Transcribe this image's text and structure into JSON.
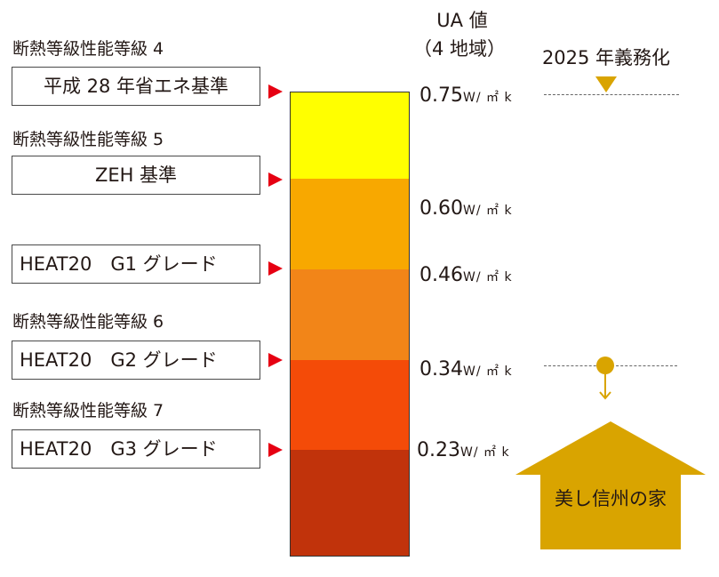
{
  "header": {
    "ua_title": "UA 値",
    "ua_region": "（4 地域）",
    "mandate": "2025 年義務化"
  },
  "grades": [
    {
      "label": "断熱等級性能等級 4",
      "standard": "平成 28 年省エネ基準",
      "value": "0.75",
      "unit": "W/ ㎡ k"
    },
    {
      "label": "断熱等級性能等級 5",
      "standard": "ZEH 基準",
      "value": "0.60",
      "unit": "W/ ㎡ k"
    },
    {
      "label": "",
      "standard": "HEAT20　G1 グレード",
      "value": "0.46",
      "unit": "W/ ㎡ k"
    },
    {
      "label": "断熱等級性能等級 6",
      "standard": "HEAT20　G2 グレード",
      "value": "0.34",
      "unit": "W/ ㎡ k"
    },
    {
      "label": "断熱等級性能等級 7",
      "standard": "HEAT20　G3 グレード",
      "value": "0.23",
      "unit": "W/ ㎡ k"
    }
  ],
  "house": {
    "label": "美し信州の家"
  },
  "colors": {
    "bar": [
      "#ffff00",
      "#f8a800",
      "#f28518",
      "#f44b08",
      "#c1330b"
    ],
    "arrow": "#e60012",
    "marker": "#d9a400",
    "house": "#d9a400"
  }
}
